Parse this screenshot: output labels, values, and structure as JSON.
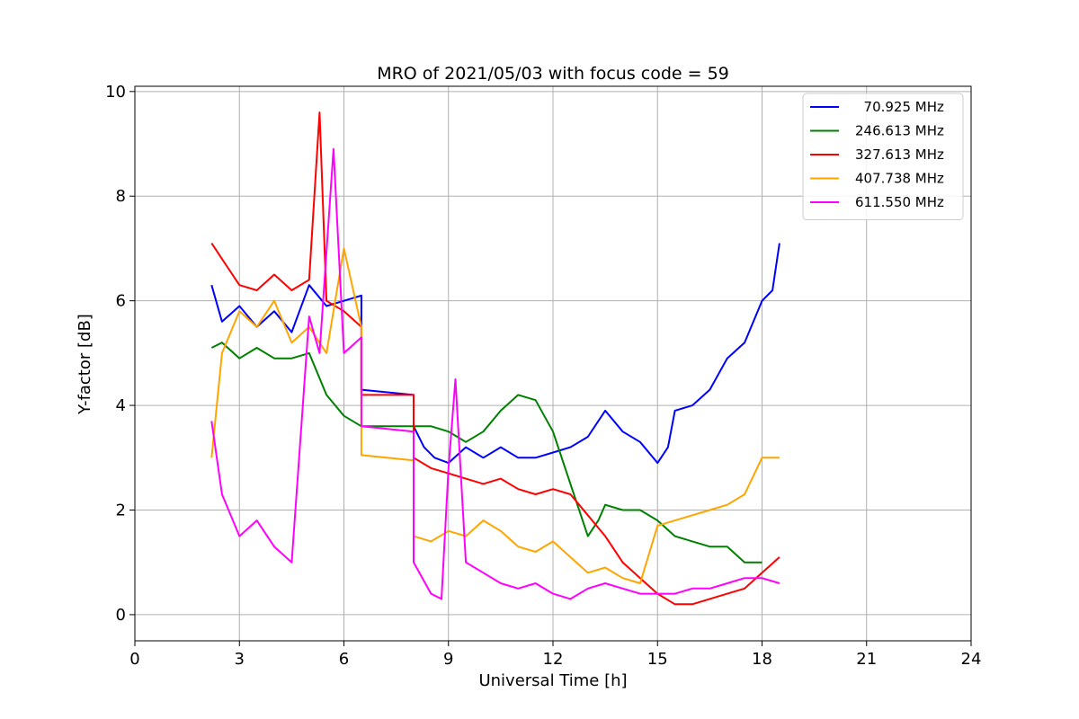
{
  "chart_data": {
    "type": "line",
    "title": "MRO of 2021/05/03 with focus code = 59",
    "xlabel": "Universal Time [h]",
    "ylabel": "Y-factor [dB]",
    "xlim": [
      0,
      24
    ],
    "ylim": [
      -0.5,
      10.1
    ],
    "xticks": [
      0,
      3,
      6,
      9,
      12,
      15,
      18,
      21,
      24
    ],
    "yticks": [
      0,
      2,
      4,
      6,
      8,
      10
    ],
    "grid": true,
    "legend_position": "top-right",
    "series": [
      {
        "name": "  70.925 MHz",
        "color": "#0000ff",
        "points": [
          [
            2.2,
            6.3
          ],
          [
            2.5,
            5.6
          ],
          [
            3.0,
            5.9
          ],
          [
            3.5,
            5.5
          ],
          [
            4.0,
            5.8
          ],
          [
            4.5,
            5.4
          ],
          [
            5.0,
            6.3
          ],
          [
            5.5,
            5.9
          ],
          [
            6.0,
            6.0
          ],
          [
            6.5,
            6.1
          ],
          [
            6.5,
            4.3
          ],
          [
            8.0,
            4.2
          ],
          [
            8.0,
            3.6
          ],
          [
            8.3,
            3.2
          ],
          [
            8.6,
            3.0
          ],
          [
            9.0,
            2.9
          ],
          [
            9.5,
            3.2
          ],
          [
            10.0,
            3.0
          ],
          [
            10.5,
            3.2
          ],
          [
            11.0,
            3.0
          ],
          [
            11.5,
            3.0
          ],
          [
            12.0,
            3.1
          ],
          [
            12.5,
            3.2
          ],
          [
            13.0,
            3.4
          ],
          [
            13.5,
            3.9
          ],
          [
            14.0,
            3.5
          ],
          [
            14.5,
            3.3
          ],
          [
            15.0,
            2.9
          ],
          [
            15.3,
            3.2
          ],
          [
            15.5,
            3.9
          ],
          [
            16.0,
            4.0
          ],
          [
            16.5,
            4.3
          ],
          [
            17.0,
            4.9
          ],
          [
            17.5,
            5.2
          ],
          [
            18.0,
            6.0
          ],
          [
            18.3,
            6.2
          ],
          [
            18.5,
            7.1
          ]
        ]
      },
      {
        "name": "246.613 MHz",
        "color": "#008000",
        "points": [
          [
            2.2,
            5.1
          ],
          [
            2.5,
            5.2
          ],
          [
            3.0,
            4.9
          ],
          [
            3.5,
            5.1
          ],
          [
            4.0,
            4.9
          ],
          [
            4.5,
            4.9
          ],
          [
            5.0,
            5.0
          ],
          [
            5.5,
            4.2
          ],
          [
            6.0,
            3.8
          ],
          [
            6.5,
            3.6
          ],
          [
            8.0,
            3.6
          ],
          [
            8.5,
            3.6
          ],
          [
            9.0,
            3.5
          ],
          [
            9.5,
            3.3
          ],
          [
            10.0,
            3.5
          ],
          [
            10.5,
            3.9
          ],
          [
            11.0,
            4.2
          ],
          [
            11.5,
            4.1
          ],
          [
            12.0,
            3.5
          ],
          [
            12.5,
            2.5
          ],
          [
            13.0,
            1.5
          ],
          [
            13.3,
            1.8
          ],
          [
            13.5,
            2.1
          ],
          [
            14.0,
            2.0
          ],
          [
            14.5,
            2.0
          ],
          [
            15.0,
            1.8
          ],
          [
            15.5,
            1.5
          ],
          [
            16.0,
            1.4
          ],
          [
            16.5,
            1.3
          ],
          [
            17.0,
            1.3
          ],
          [
            17.5,
            1.0
          ],
          [
            18.0,
            1.0
          ]
        ]
      },
      {
        "name": "327.613 MHz",
        "color": "#ff0000",
        "points": [
          [
            2.2,
            7.1
          ],
          [
            2.5,
            6.8
          ],
          [
            3.0,
            6.3
          ],
          [
            3.5,
            6.2
          ],
          [
            4.0,
            6.5
          ],
          [
            4.5,
            6.2
          ],
          [
            5.0,
            6.4
          ],
          [
            5.3,
            9.6
          ],
          [
            5.5,
            6.0
          ],
          [
            6.0,
            5.8
          ],
          [
            6.5,
            5.5
          ],
          [
            6.5,
            4.2
          ],
          [
            8.0,
            4.2
          ],
          [
            8.0,
            3.0
          ],
          [
            8.5,
            2.8
          ],
          [
            9.0,
            2.7
          ],
          [
            9.5,
            2.6
          ],
          [
            10.0,
            2.5
          ],
          [
            10.5,
            2.6
          ],
          [
            11.0,
            2.4
          ],
          [
            11.5,
            2.3
          ],
          [
            12.0,
            2.4
          ],
          [
            12.5,
            2.3
          ],
          [
            13.0,
            1.9
          ],
          [
            13.5,
            1.5
          ],
          [
            14.0,
            1.0
          ],
          [
            14.5,
            0.7
          ],
          [
            15.0,
            0.4
          ],
          [
            15.5,
            0.2
          ],
          [
            16.0,
            0.2
          ],
          [
            16.5,
            0.3
          ],
          [
            17.0,
            0.4
          ],
          [
            17.5,
            0.5
          ],
          [
            18.0,
            0.8
          ],
          [
            18.5,
            1.1
          ]
        ]
      },
      {
        "name": "407.738 MHz",
        "color": "#ffa500",
        "points": [
          [
            2.2,
            3.0
          ],
          [
            2.5,
            5.0
          ],
          [
            3.0,
            5.8
          ],
          [
            3.5,
            5.5
          ],
          [
            4.0,
            6.0
          ],
          [
            4.5,
            5.2
          ],
          [
            5.0,
            5.5
          ],
          [
            5.5,
            5.0
          ],
          [
            6.0,
            7.0
          ],
          [
            6.5,
            5.5
          ],
          [
            6.5,
            3.05
          ],
          [
            8.0,
            2.95
          ],
          [
            8.0,
            1.5
          ],
          [
            8.5,
            1.4
          ],
          [
            9.0,
            1.6
          ],
          [
            9.5,
            1.5
          ],
          [
            10.0,
            1.8
          ],
          [
            10.5,
            1.6
          ],
          [
            11.0,
            1.3
          ],
          [
            11.5,
            1.2
          ],
          [
            12.0,
            1.4
          ],
          [
            12.5,
            1.1
          ],
          [
            13.0,
            0.8
          ],
          [
            13.5,
            0.9
          ],
          [
            14.0,
            0.7
          ],
          [
            14.5,
            0.6
          ],
          [
            15.0,
            1.7
          ],
          [
            15.5,
            1.8
          ],
          [
            16.0,
            1.9
          ],
          [
            16.5,
            2.0
          ],
          [
            17.0,
            2.1
          ],
          [
            17.5,
            2.3
          ],
          [
            18.0,
            3.0
          ],
          [
            18.5,
            3.0
          ]
        ]
      },
      {
        "name": "611.550 MHz",
        "color": "#ff00ff",
        "points": [
          [
            2.2,
            3.7
          ],
          [
            2.5,
            2.3
          ],
          [
            3.0,
            1.5
          ],
          [
            3.5,
            1.8
          ],
          [
            4.0,
            1.3
          ],
          [
            4.5,
            1.0
          ],
          [
            5.0,
            5.7
          ],
          [
            5.3,
            5.0
          ],
          [
            5.7,
            8.9
          ],
          [
            6.0,
            5.0
          ],
          [
            6.5,
            5.3
          ],
          [
            6.5,
            3.6
          ],
          [
            8.0,
            3.5
          ],
          [
            8.0,
            1.0
          ],
          [
            8.5,
            0.4
          ],
          [
            8.8,
            0.3
          ],
          [
            9.0,
            2.8
          ],
          [
            9.2,
            4.5
          ],
          [
            9.5,
            1.0
          ],
          [
            10.0,
            0.8
          ],
          [
            10.5,
            0.6
          ],
          [
            11.0,
            0.5
          ],
          [
            11.5,
            0.6
          ],
          [
            12.0,
            0.4
          ],
          [
            12.5,
            0.3
          ],
          [
            13.0,
            0.5
          ],
          [
            13.5,
            0.6
          ],
          [
            14.0,
            0.5
          ],
          [
            14.5,
            0.4
          ],
          [
            15.0,
            0.4
          ],
          [
            15.5,
            0.4
          ],
          [
            16.0,
            0.5
          ],
          [
            16.5,
            0.5
          ],
          [
            17.0,
            0.6
          ],
          [
            17.5,
            0.7
          ],
          [
            18.0,
            0.7
          ],
          [
            18.5,
            0.6
          ]
        ]
      }
    ]
  }
}
